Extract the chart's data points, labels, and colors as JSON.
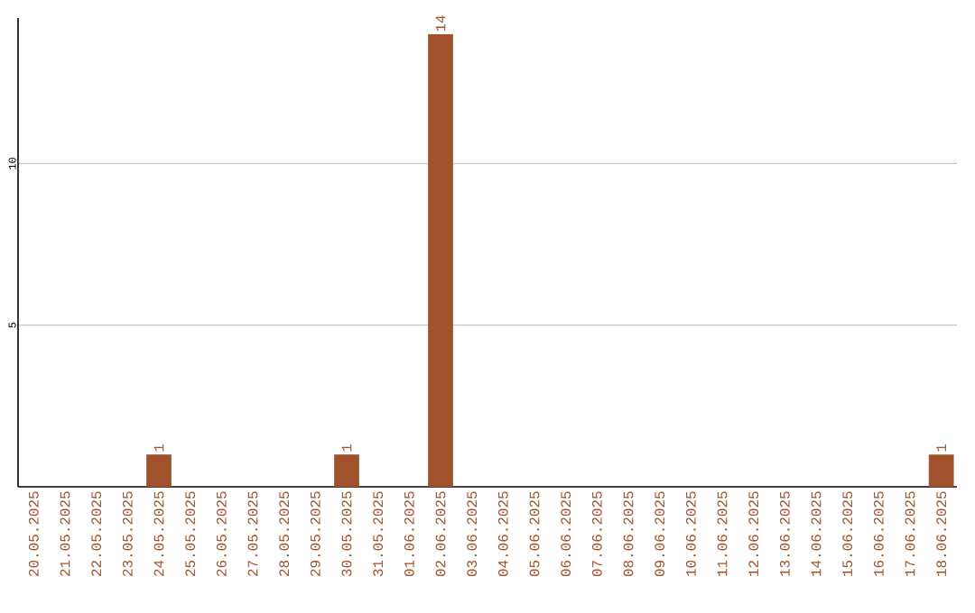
{
  "chart_data": {
    "type": "bar",
    "categories": [
      "20.05.2025",
      "21.05.2025",
      "22.05.2025",
      "23.05.2025",
      "24.05.2025",
      "25.05.2025",
      "26.05.2025",
      "27.05.2025",
      "28.05.2025",
      "29.05.2025",
      "30.05.2025",
      "31.05.2025",
      "01.06.2025",
      "02.06.2025",
      "03.06.2025",
      "04.06.2025",
      "05.06.2025",
      "06.06.2025",
      "07.06.2025",
      "08.06.2025",
      "09.06.2025",
      "10.06.2025",
      "11.06.2025",
      "12.06.2025",
      "13.06.2025",
      "14.06.2025",
      "15.06.2025",
      "16.06.2025",
      "17.06.2025",
      "18.06.2025"
    ],
    "values": [
      0,
      0,
      0,
      0,
      1,
      0,
      0,
      0,
      0,
      0,
      1,
      0,
      0,
      14,
      0,
      0,
      0,
      0,
      0,
      0,
      0,
      0,
      0,
      0,
      0,
      0,
      0,
      0,
      0,
      1
    ],
    "value_labels": [
      null,
      null,
      null,
      null,
      "1",
      null,
      null,
      null,
      null,
      null,
      "1",
      null,
      null,
      "14",
      null,
      null,
      null,
      null,
      null,
      null,
      null,
      null,
      null,
      null,
      null,
      null,
      null,
      null,
      null,
      "1"
    ],
    "color": "#a0522d",
    "ylim": [
      0,
      14.5
    ],
    "yticks": [
      5,
      10
    ],
    "grid": "y"
  }
}
